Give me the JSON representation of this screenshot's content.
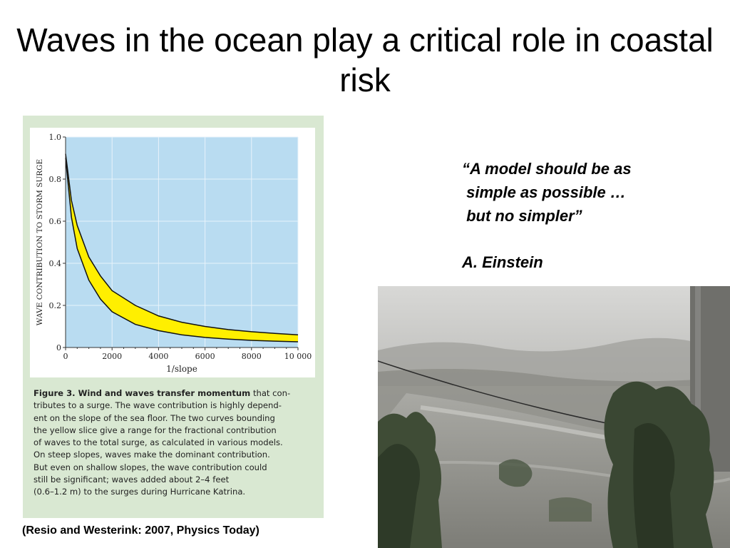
{
  "slide": {
    "title": "Waves in the ocean play a critical role in coastal risk",
    "quote_lines": [
      "“A model should be as",
      " simple as possible …",
      " but no simpler”"
    ],
    "attribution": "A. Einstein",
    "citation": "(Resio and Westerink: 2007, Physics Today)"
  },
  "figure": {
    "caption_bold": "Figure 3. Wind and waves transfer momentum",
    "caption_lines": [
      "that con-",
      "tributes to a surge. The wave contribution is highly depend-",
      "ent on the slope of the sea floor. The two curves bounding",
      "the yellow slice give a range for the fractional contribution",
      "of waves to the total surge, as calculated in various models.",
      "On steep slopes, waves make the dominant contribution.",
      "But even on shallow slopes, the wave contribution could",
      "still be significant; waves added about 2–4 feet",
      "(0.6–1.2 m) to the surges during Hurricane Katrina."
    ]
  },
  "chart_data": {
    "type": "area",
    "xlabel": "1/slope",
    "ylabel": "WAVE CONTRIBUTION TO STORM SURGE",
    "xlim": [
      0,
      10000
    ],
    "ylim": [
      0,
      1.0
    ],
    "x_ticks": [
      "0",
      "2000",
      "4000",
      "6000",
      "8000",
      "10 000"
    ],
    "y_ticks": [
      "0",
      "0.2",
      "0.4",
      "0.6",
      "0.8",
      "1.0"
    ],
    "grid": true,
    "band_color": "#ffef00",
    "background_color": "#b9dcf1",
    "series": [
      {
        "x": [
          0,
          250,
          500,
          1000,
          1500,
          2000,
          3000,
          4000,
          5000,
          6000,
          7000,
          8000,
          9000,
          10000
        ],
        "values": [
          0.92,
          0.7,
          0.58,
          0.43,
          0.34,
          0.27,
          0.2,
          0.15,
          0.12,
          0.1,
          0.085,
          0.075,
          0.067,
          0.06
        ]
      },
      {
        "x": [
          0,
          250,
          500,
          1000,
          1500,
          2000,
          3000,
          4000,
          5000,
          6000,
          7000,
          8000,
          9000,
          10000
        ],
        "values": [
          0.9,
          0.62,
          0.47,
          0.32,
          0.23,
          0.17,
          0.11,
          0.08,
          0.06,
          0.048,
          0.04,
          0.034,
          0.03,
          0.027
        ]
      }
    ]
  }
}
